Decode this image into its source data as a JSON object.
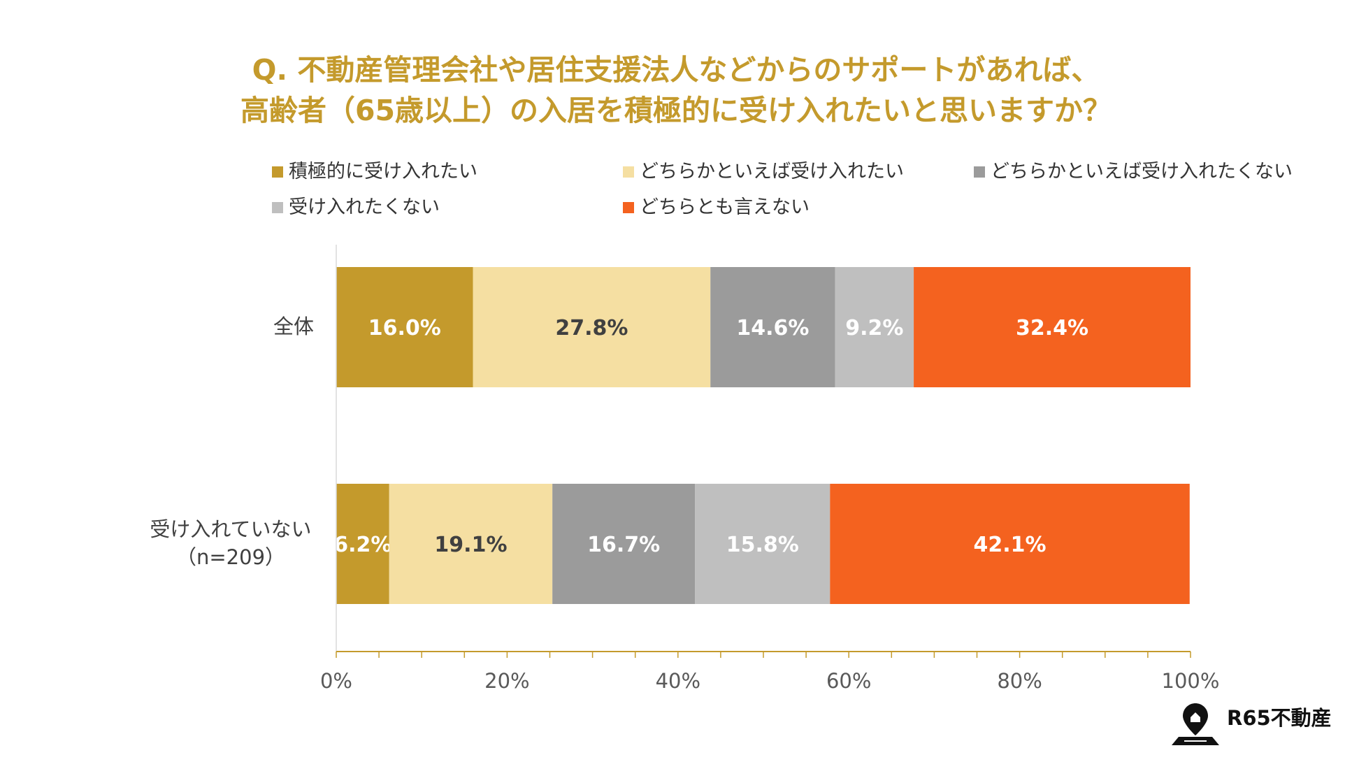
{
  "chart_data": {
    "type": "bar",
    "orientation": "horizontal",
    "stacked": true,
    "title": "Q. 不動産管理会社や居住支援法人などからのサポートがあれば、",
    "subtitle": "高齢者（65歳以上）の入居を積極的に受け入れたいと思いますか？",
    "categories": [
      "全体",
      "受け入れていない"
    ],
    "category_sublabels": [
      "",
      "（n=209）"
    ],
    "series": [
      {
        "name": "積極的に受け入れたい",
        "color": "#c49a2c",
        "label_color": "#ffffff",
        "values": [
          16.0,
          6.2
        ],
        "labels": [
          "16.0%",
          "6.2%"
        ]
      },
      {
        "name": "どちらかといえば受け入れたい",
        "color": "#f5dfa2",
        "label_color": "#404040",
        "values": [
          27.8,
          19.1
        ],
        "labels": [
          "27.8%",
          "19.1%"
        ]
      },
      {
        "name": "どちらかといえば受け入れたくない",
        "color": "#9b9b9b",
        "label_color": "#ffffff",
        "values": [
          14.6,
          16.7
        ],
        "labels": [
          "14.6%",
          "16.7%"
        ]
      },
      {
        "name": "受け入れたくない",
        "color": "#bfbfbf",
        "label_color": "#ffffff",
        "values": [
          9.2,
          15.8
        ],
        "labels": [
          "9.2%",
          "15.8%"
        ]
      },
      {
        "name": "どちらとも言えない",
        "color": "#f4621f",
        "label_color": "#ffffff",
        "values": [
          32.4,
          42.1
        ],
        "labels": [
          "32.4%",
          "42.1%"
        ]
      }
    ],
    "xlim": [
      0,
      100
    ],
    "xticks": [
      "0%",
      "20%",
      "40%",
      "60%",
      "80%",
      "100%"
    ],
    "grid": false,
    "legend_position": "top"
  },
  "branding": {
    "logo_text": "R65不動産",
    "icon": "map-pin-house-icon"
  }
}
